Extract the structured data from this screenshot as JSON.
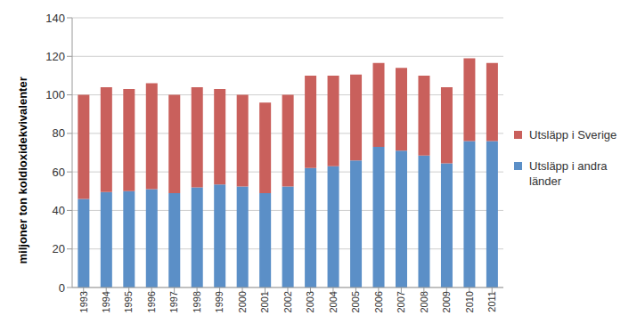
{
  "chart_data": {
    "type": "bar",
    "y_label": "miljoner ton koldioxidekvivalenter",
    "categories": [
      "1993",
      "1994",
      "1995",
      "1996",
      "1997",
      "1998",
      "1999",
      "2000",
      "2001",
      "2002",
      "2003",
      "2004",
      "2005",
      "2006",
      "2007",
      "2008",
      "2009",
      "2010",
      "2011"
    ],
    "series": [
      {
        "name": "Utsläpp i andra länder",
        "color": "#5b8fc7",
        "values": [
          46,
          49.5,
          50,
          51,
          49,
          52,
          53.5,
          52.5,
          49,
          52.5,
          62,
          63,
          66,
          73,
          71,
          68.5,
          64.5,
          76,
          76
        ]
      },
      {
        "name": "Utsläpp i Sverige",
        "color": "#c9605c",
        "values": [
          54,
          54.5,
          53,
          55,
          51,
          52,
          49.5,
          47.5,
          47,
          47.5,
          48,
          47,
          44.5,
          43.5,
          43,
          41.5,
          39.5,
          43,
          40.5
        ]
      }
    ],
    "ylim": [
      0,
      140
    ],
    "yticks": [
      0,
      20,
      40,
      60,
      80,
      100,
      120,
      140
    ],
    "grid": true,
    "stacked": true,
    "legend": "right"
  }
}
